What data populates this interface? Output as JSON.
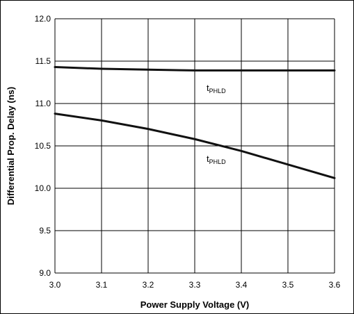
{
  "chart_data": {
    "type": "line",
    "xlabel": "Power Supply Voltage (V)",
    "ylabel": "Differential Prop. Delay (ns)",
    "xlim": [
      3.0,
      3.6
    ],
    "ylim": [
      9.0,
      12.0
    ],
    "xticks": [
      "3.0",
      "3.1",
      "3.2",
      "3.3",
      "3.4",
      "3.5",
      "3.6"
    ],
    "yticks": [
      "12.0",
      "11.5",
      "11.0",
      "10.5",
      "10.0",
      "9.5",
      "9.0"
    ],
    "grid": true,
    "series": [
      {
        "label_main": "t",
        "label_sub": "PHLD",
        "x": [
          3.0,
          3.1,
          3.2,
          3.3,
          3.4,
          3.5,
          3.6
        ],
        "y": [
          11.43,
          11.41,
          11.4,
          11.39,
          11.39,
          11.39,
          11.39
        ]
      },
      {
        "label_main": "t",
        "label_sub": "PHLD",
        "x": [
          3.0,
          3.1,
          3.2,
          3.3,
          3.4,
          3.5,
          3.6
        ],
        "y": [
          10.88,
          10.8,
          10.7,
          10.58,
          10.44,
          10.28,
          10.12
        ]
      }
    ]
  }
}
